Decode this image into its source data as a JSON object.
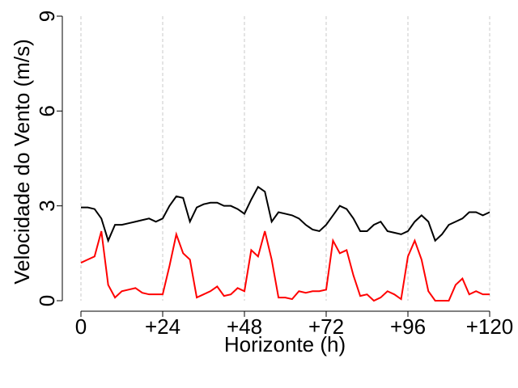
{
  "chart_data": {
    "type": "line",
    "xlabel": "Horizonte (h)",
    "ylabel": "Velocidade do Vento (m/s)",
    "x": [
      0,
      2,
      4,
      6,
      8,
      10,
      12,
      14,
      16,
      18,
      20,
      22,
      24,
      26,
      28,
      30,
      32,
      34,
      36,
      38,
      40,
      42,
      44,
      46,
      48,
      50,
      52,
      54,
      56,
      58,
      60,
      62,
      64,
      66,
      68,
      70,
      72,
      74,
      76,
      78,
      80,
      82,
      84,
      86,
      88,
      90,
      92,
      94,
      96,
      98,
      100,
      102,
      104,
      106,
      108,
      110,
      112,
      114,
      116,
      118,
      120
    ],
    "series": [
      {
        "color": "#000000",
        "values": [
          2.95,
          2.95,
          2.9,
          2.6,
          1.9,
          2.4,
          2.4,
          2.45,
          2.5,
          2.55,
          2.6,
          2.5,
          2.6,
          3.0,
          3.3,
          3.25,
          2.5,
          2.95,
          3.05,
          3.1,
          3.1,
          3.0,
          3.0,
          2.9,
          2.75,
          3.2,
          3.6,
          3.45,
          2.5,
          2.8,
          2.75,
          2.7,
          2.6,
          2.4,
          2.25,
          2.2,
          2.4,
          2.7,
          3.0,
          2.9,
          2.6,
          2.2,
          2.2,
          2.4,
          2.5,
          2.2,
          2.15,
          2.1,
          2.2,
          2.5,
          2.7,
          2.5,
          1.9,
          2.1,
          2.4,
          2.5,
          2.6,
          2.8,
          2.8,
          2.7,
          2.8
        ]
      },
      {
        "color": "#ff0000",
        "values": [
          1.2,
          1.3,
          1.4,
          2.2,
          0.5,
          0.1,
          0.3,
          0.35,
          0.4,
          0.25,
          0.2,
          0.2,
          0.2,
          1.1,
          2.1,
          1.5,
          1.3,
          0.1,
          0.2,
          0.3,
          0.45,
          0.15,
          0.2,
          0.4,
          0.3,
          1.6,
          1.4,
          2.2,
          1.3,
          0.1,
          0.1,
          0.05,
          0.3,
          0.25,
          0.3,
          0.3,
          0.35,
          1.9,
          1.5,
          1.6,
          0.8,
          0.15,
          0.2,
          0.0,
          0.1,
          0.3,
          0.2,
          0.05,
          1.4,
          1.9,
          1.3,
          0.3,
          0.0,
          0.0,
          0.0,
          0.5,
          0.7,
          0.2,
          0.3,
          0.2,
          0.2
        ]
      }
    ],
    "xlim": [
      0,
      120
    ],
    "ylim": [
      0,
      9
    ],
    "xticks": [
      0,
      {
        "value": 24,
        "label": "+24"
      },
      {
        "value": 48,
        "label": "+48"
      },
      {
        "value": 72,
        "label": "+72"
      },
      {
        "value": 96,
        "label": "+96"
      },
      {
        "value": 120,
        "label": "+120"
      }
    ],
    "yticks": [
      0,
      3,
      6,
      9
    ],
    "grid": "x"
  }
}
